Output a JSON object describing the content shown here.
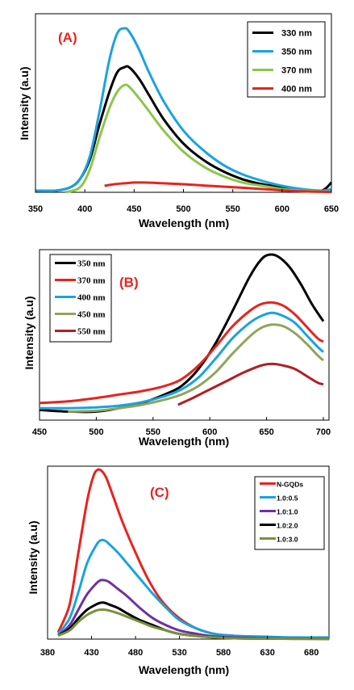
{
  "chart_data": [
    {
      "panel": "(A)",
      "type": "line",
      "xlabel": "Wavelength (nm)",
      "ylabel": "Intensity (a.u)",
      "xlim": [
        350,
        650
      ],
      "ylim": [
        0,
        100
      ],
      "xticks": [
        "350",
        "400",
        "450",
        "500",
        "550",
        "600",
        "650"
      ],
      "grid": false,
      "legend_position": "top-right",
      "series": [
        {
          "name": "330 nm",
          "color": "#000000",
          "x": [
            350,
            370,
            385,
            395,
            405,
            415,
            425,
            433,
            440,
            445,
            455,
            465,
            480,
            500,
            520,
            540,
            560,
            580,
            600,
            620,
            640,
            650
          ],
          "y": [
            1,
            1,
            3,
            8,
            20,
            42,
            62,
            74,
            77,
            77,
            70,
            60,
            45,
            30,
            20,
            13,
            8,
            5,
            3,
            1.5,
            1,
            6
          ]
        },
        {
          "name": "350 nm",
          "color": "#1aa3de",
          "x": [
            350,
            370,
            385,
            395,
            405,
            415,
            425,
            433,
            440,
            445,
            455,
            465,
            480,
            500,
            520,
            540,
            560,
            580,
            600,
            620,
            640,
            650
          ],
          "y": [
            1,
            1,
            3,
            8,
            22,
            50,
            82,
            98,
            101,
            99,
            88,
            74,
            56,
            38,
            26,
            17,
            11,
            7,
            4,
            2,
            1,
            2
          ]
        },
        {
          "name": "370 nm",
          "color": "#8bc64b",
          "x": [
            380,
            395,
            405,
            415,
            425,
            433,
            440,
            445,
            455,
            465,
            480,
            500,
            520,
            540,
            560,
            580,
            600,
            620,
            640,
            650
          ],
          "y": [
            0,
            3,
            14,
            34,
            52,
            62,
            66,
            65,
            58,
            50,
            38,
            25,
            16,
            10,
            6,
            4,
            2,
            1,
            0.5,
            0.5
          ]
        },
        {
          "name": "400 nm",
          "color": "#e8231d",
          "x": [
            420,
            430,
            440,
            450,
            460,
            470,
            480,
            500,
            520,
            540,
            560,
            580,
            600,
            620,
            640,
            650
          ],
          "y": [
            4,
            5,
            5.5,
            6,
            6,
            5.8,
            5.5,
            5,
            4.2,
            3.5,
            2.8,
            2,
            1.2,
            0.6,
            0.3,
            0.2
          ]
        }
      ]
    },
    {
      "panel": "(B)",
      "type": "line",
      "xlabel": "Wavelength (nm)",
      "ylabel": "Intensity (a.u)",
      "xlim": [
        450,
        705
      ],
      "ylim": [
        0,
        100
      ],
      "xticks": [
        "450",
        "500",
        "550",
        "600",
        "650",
        "700"
      ],
      "grid": false,
      "legend_position": "top-left",
      "series": [
        {
          "name": "350 nm",
          "color": "#000000",
          "x": [
            450,
            475,
            500,
            520,
            540,
            560,
            575,
            590,
            605,
            620,
            635,
            645,
            652,
            660,
            670,
            680,
            690,
            700
          ],
          "y": [
            6,
            5,
            5,
            7,
            10,
            15,
            20,
            30,
            45,
            64,
            84,
            94,
            97,
            96,
            90,
            80,
            68,
            58
          ]
        },
        {
          "name": "370 nm",
          "color": "#e8231d",
          "x": [
            450,
            475,
            500,
            520,
            540,
            560,
            575,
            590,
            605,
            620,
            635,
            645,
            655,
            665,
            675,
            685,
            695,
            700
          ],
          "y": [
            10,
            11,
            13,
            15,
            17,
            20,
            24,
            32,
            43,
            55,
            64,
            68,
            69,
            67,
            62,
            55,
            48,
            46
          ]
        },
        {
          "name": "400 nm",
          "color": "#1aa3de",
          "x": [
            450,
            475,
            500,
            520,
            540,
            560,
            575,
            590,
            605,
            620,
            635,
            645,
            655,
            665,
            675,
            685,
            695,
            700
          ],
          "y": [
            7,
            7,
            7.5,
            8.5,
            10.5,
            14,
            18,
            25,
            36,
            48,
            57,
            61,
            63,
            61,
            57,
            50,
            43,
            40
          ]
        },
        {
          "name": "450 nm",
          "color": "#8fa55a",
          "x": [
            475,
            500,
            520,
            540,
            560,
            575,
            590,
            605,
            620,
            635,
            645,
            655,
            665,
            675,
            685,
            695,
            700
          ],
          "y": [
            5,
            5.5,
            7,
            9,
            12,
            15,
            20,
            28,
            39,
            49,
            54,
            56,
            55,
            51,
            45,
            38,
            35
          ]
        },
        {
          "name": "550 nm",
          "color": "#b01f24",
          "x": [
            572,
            585,
            600,
            615,
            630,
            645,
            655,
            665,
            675,
            685,
            695,
            700
          ],
          "y": [
            9,
            13,
            18,
            23,
            28,
            32,
            33,
            32,
            30,
            26,
            22,
            21
          ]
        }
      ]
    },
    {
      "panel": "(C)",
      "type": "line",
      "xlabel": "Wavelength (nm)",
      "ylabel": "Intensity (a.u)",
      "xlim": [
        380,
        700
      ],
      "ylim": [
        0,
        100
      ],
      "xticks": [
        "380",
        "430",
        "480",
        "530",
        "580",
        "630",
        "680"
      ],
      "grid": false,
      "legend_position": "top-right",
      "series": [
        {
          "name": "N-GQDs",
          "color": "#e8231d",
          "x": [
            392,
            405,
            415,
            425,
            432,
            437,
            442,
            447,
            455,
            465,
            480,
            495,
            510,
            530,
            550,
            570,
            590,
            620,
            660,
            700
          ],
          "y": [
            4,
            20,
            50,
            80,
            94,
            98,
            97,
            93,
            82,
            68,
            50,
            34,
            22,
            12,
            6,
            3,
            2,
            1.2,
            0.8,
            0.7
          ]
        },
        {
          "name": "1.0:0.5",
          "color": "#1aa3de",
          "x": [
            392,
            405,
            415,
            425,
            435,
            440,
            445,
            450,
            460,
            470,
            485,
            500,
            515,
            530,
            550,
            570,
            590,
            620,
            660,
            700
          ],
          "y": [
            3,
            12,
            27,
            44,
            54,
            57,
            57,
            55,
            50,
            44,
            35,
            26,
            18,
            11,
            6,
            3,
            2,
            1.5,
            1,
            1
          ]
        },
        {
          "name": "1.0:1.0",
          "color": "#7030a0",
          "x": [
            392,
            405,
            415,
            425,
            435,
            440,
            445,
            450,
            460,
            470,
            485,
            500,
            515,
            530,
            550,
            570,
            590,
            620,
            660,
            700
          ],
          "y": [
            2,
            8,
            17,
            26,
            32,
            34,
            34,
            33,
            29,
            25,
            18,
            12,
            8,
            5,
            3,
            1.5,
            1,
            0.6,
            0.3,
            0.2
          ]
        },
        {
          "name": "1.0:2.0",
          "color": "#000000",
          "x": [
            392,
            405,
            415,
            425,
            435,
            440,
            445,
            450,
            460,
            470,
            485,
            500,
            515,
            530,
            550,
            570,
            590,
            620,
            660,
            700
          ],
          "y": [
            2,
            6,
            12,
            17,
            20,
            21,
            21,
            20,
            18,
            15,
            11,
            8,
            5,
            3,
            1.8,
            1,
            0.5,
            0.3,
            0.2,
            0.1
          ]
        },
        {
          "name": "1.0:3.0",
          "color": "#76923c",
          "x": [
            392,
            405,
            415,
            425,
            435,
            440,
            445,
            450,
            460,
            470,
            485,
            500,
            515,
            530,
            550,
            570,
            590,
            620,
            660,
            700
          ],
          "y": [
            2,
            5,
            10,
            14,
            16.5,
            17,
            17,
            16.5,
            15,
            13,
            10,
            7,
            5,
            3,
            1.8,
            1,
            0.5,
            0.3,
            0.2,
            0.1
          ]
        }
      ]
    }
  ]
}
